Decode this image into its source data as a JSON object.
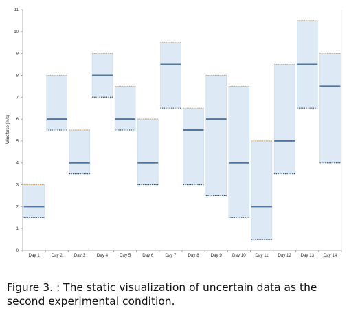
{
  "chart_data": {
    "type": "range-bar",
    "ylabel": "Windforce (m/s)",
    "xlabel": "",
    "title": "",
    "ylim": [
      0,
      11
    ],
    "yticks": [
      0,
      1,
      2,
      3,
      4,
      5,
      6,
      7,
      8,
      9,
      10,
      11
    ],
    "grid": false,
    "categories": [
      "Day 1",
      "Day 2",
      "Day 3",
      "Day 4",
      "Day 5",
      "Day 6",
      "Day 7",
      "Day 8",
      "Day 9",
      "Day 10",
      "Day 11",
      "Day 12",
      "Day 13",
      "Day 14"
    ],
    "series": [
      {
        "low": 1.5,
        "mid": 2,
        "high": 3
      },
      {
        "low": 5.5,
        "mid": 6,
        "high": 8
      },
      {
        "low": 3.5,
        "mid": 4,
        "high": 5.5
      },
      {
        "low": 7,
        "mid": 8,
        "high": 9
      },
      {
        "low": 5.5,
        "mid": 6,
        "high": 7.5
      },
      {
        "low": 3,
        "mid": 4,
        "high": 6
      },
      {
        "low": 6.5,
        "mid": 8.5,
        "high": 9.5
      },
      {
        "low": 3,
        "mid": 5.5,
        "high": 6.5
      },
      {
        "low": 2.5,
        "mid": 6,
        "high": 8
      },
      {
        "low": 1.5,
        "mid": 4,
        "high": 7.5
      },
      {
        "low": 0.5,
        "mid": 2,
        "high": 5
      },
      {
        "low": 3.5,
        "mid": 5,
        "high": 8.5
      },
      {
        "low": 6.5,
        "mid": 8.5,
        "high": 10.5
      },
      {
        "low": 4,
        "mid": 7.5,
        "high": 9
      }
    ],
    "colors": {
      "band_fill": "#ddeaf6",
      "band_edge": "#c6d9ec",
      "mid_line": "#4f75a0",
      "upper_dotted": "#e0a050",
      "lower_dotted": "#2f4c6e",
      "axis": "#999999"
    }
  },
  "caption": "Figure 3. : The static visualization of uncertain data as the second experimental condition."
}
